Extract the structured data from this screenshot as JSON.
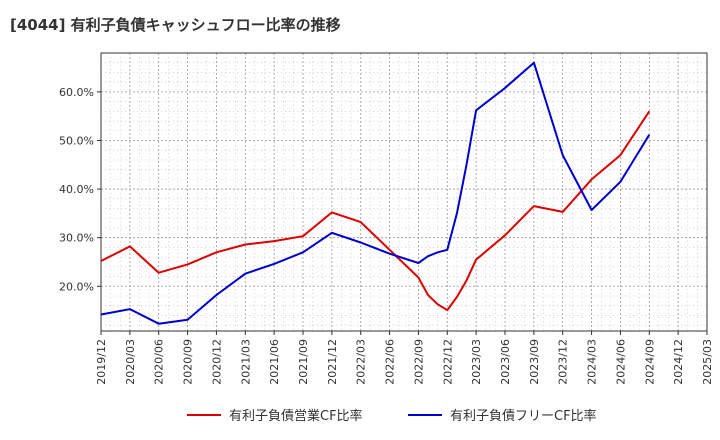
{
  "chart_data": {
    "type": "line",
    "title": "[4044]  有利子負債キャッシュフロー比率の推移",
    "xlabel": "",
    "ylabel": "",
    "x_ticks": [
      "2019/12",
      "2020/03",
      "2020/06",
      "2020/09",
      "2020/12",
      "2021/03",
      "2021/06",
      "2021/09",
      "2021/12",
      "2022/03",
      "2022/06",
      "2022/09",
      "2022/12",
      "2023/03",
      "2023/06",
      "2023/09",
      "2023/12",
      "2024/03",
      "2024/06",
      "2024/09",
      "2024/12",
      "2025/03"
    ],
    "y_ticks": [
      20,
      30,
      40,
      50,
      60
    ],
    "y_tick_format": "{v}.0%",
    "ylim": [
      10.8,
      68.0
    ],
    "grid": true,
    "legend_position": "bottom",
    "series": [
      {
        "name": "有利子負債営業CF比率",
        "color": "#dd0000",
        "points": [
          [
            "2019/12",
            25.2
          ],
          [
            "2020/03",
            28.2
          ],
          [
            "2020/06",
            22.8
          ],
          [
            "2020/09",
            24.5
          ],
          [
            "2020/12",
            27.0
          ],
          [
            "2021/03",
            28.6
          ],
          [
            "2021/06",
            29.3
          ],
          [
            "2021/09",
            30.3
          ],
          [
            "2021/12",
            35.2
          ],
          [
            "2022/03",
            33.2
          ],
          [
            "2022/06",
            27.5
          ],
          [
            "2022/09",
            21.8
          ],
          [
            "2022/10",
            18.2
          ],
          [
            "2022/11",
            16.3
          ],
          [
            "2022/12",
            15.1
          ],
          [
            "2023/01",
            17.8
          ],
          [
            "2023/02",
            21.2
          ],
          [
            "2023/03",
            25.5
          ],
          [
            "2023/06",
            30.5
          ],
          [
            "2023/09",
            36.5
          ],
          [
            "2023/12",
            35.3
          ],
          [
            "2024/03",
            42.0
          ],
          [
            "2024/06",
            47.0
          ],
          [
            "2024/09",
            56.0
          ]
        ]
      },
      {
        "name": "有利子負債フリーCF比率",
        "color": "#0000cc",
        "points": [
          [
            "2019/12",
            14.2
          ],
          [
            "2020/03",
            15.3
          ],
          [
            "2020/06",
            12.3
          ],
          [
            "2020/09",
            13.1
          ],
          [
            "2020/12",
            18.2
          ],
          [
            "2021/03",
            22.6
          ],
          [
            "2021/06",
            24.6
          ],
          [
            "2021/09",
            27.0
          ],
          [
            "2021/12",
            31.0
          ],
          [
            "2022/03",
            29.0
          ],
          [
            "2022/06",
            26.7
          ],
          [
            "2022/09",
            24.8
          ],
          [
            "2022/10",
            26.2
          ],
          [
            "2022/11",
            27.0
          ],
          [
            "2022/12",
            27.5
          ],
          [
            "2023/01",
            35.0
          ],
          [
            "2023/02",
            45.0
          ],
          [
            "2023/03",
            56.2
          ],
          [
            "2023/06",
            60.8
          ],
          [
            "2023/09",
            66.0
          ],
          [
            "2023/12",
            47.0
          ],
          [
            "2024/03",
            35.7
          ],
          [
            "2024/06",
            41.5
          ],
          [
            "2024/09",
            51.2
          ]
        ]
      }
    ]
  }
}
